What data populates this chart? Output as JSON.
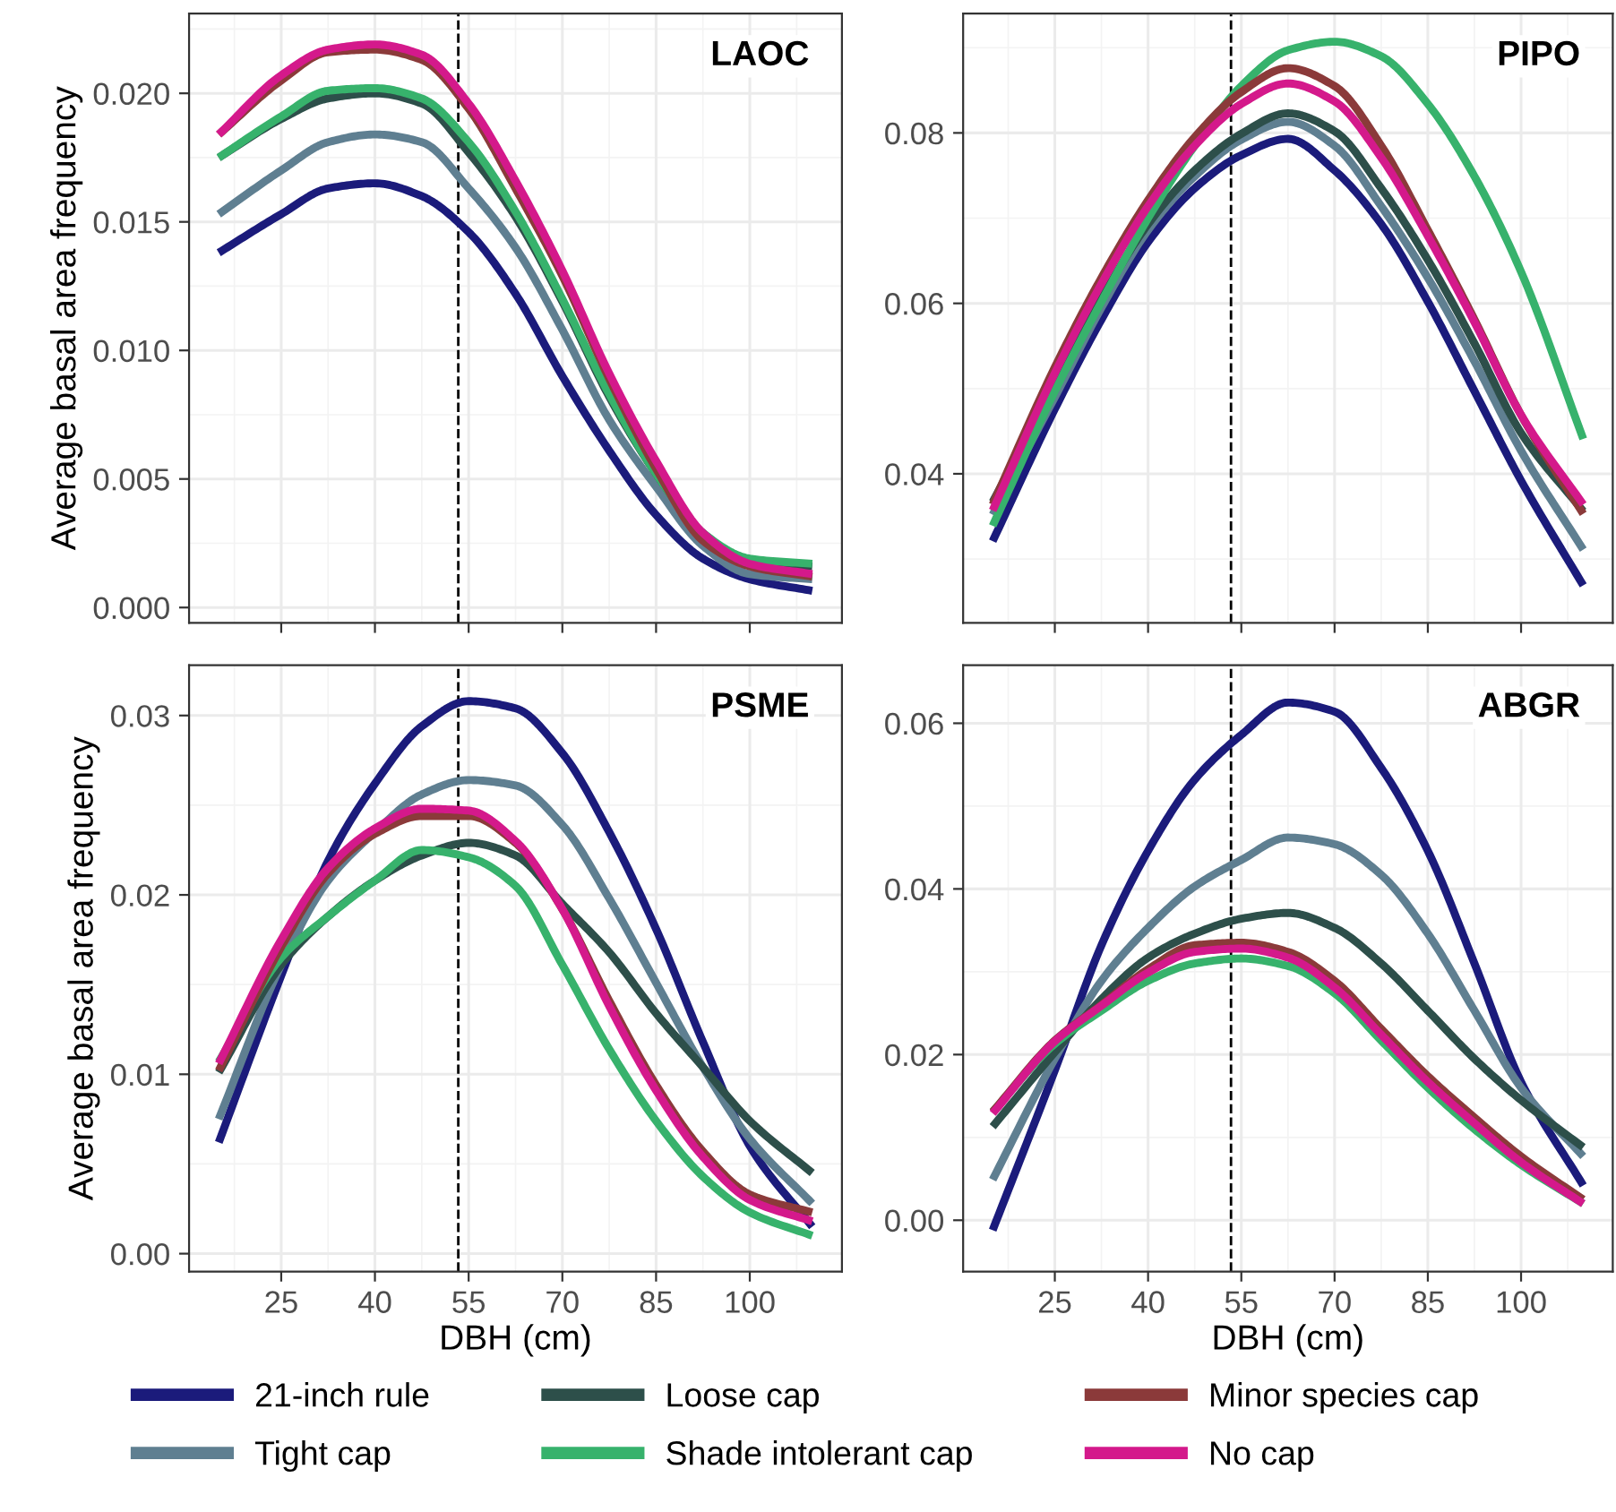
{
  "chart_data": [
    {
      "type": "line",
      "title": "LAOC",
      "ylabel": "Average basal area frequency",
      "x": [
        15,
        25,
        32.5,
        40,
        47.5,
        55,
        62.5,
        70,
        77.5,
        85,
        92.5,
        100,
        110
      ],
      "xlim": [
        10.25,
        114.75
      ],
      "xticks": [
        25,
        40,
        55,
        70,
        85,
        100
      ],
      "ylim": [
        -0.0006,
        0.0231
      ],
      "yticks": [
        {
          "value": 0,
          "label": "0.000"
        },
        0.005,
        {
          "value": 0.01,
          "label": "0.010"
        },
        0.015,
        {
          "value": 0.02,
          "label": "0.020"
        }
      ],
      "tick_labels": "y",
      "grid": true,
      "legend": "bottom",
      "marker": "none",
      "line_style": "solid",
      "ref_lines": [
        {
          "axis": "x",
          "value": 53.34,
          "color": "#000000",
          "line_style": "dashed"
        }
      ],
      "series": [
        {
          "name": "21-inch rule",
          "color": "#1b1b7b",
          "values": [
            0.0138,
            0.0153,
            0.0163,
            0.0165,
            0.016,
            0.0146,
            0.0122,
            0.009,
            0.0061,
            0.0036,
            0.0019,
            0.0011,
            0.00065
          ]
        },
        {
          "name": "Tight cap",
          "color": "#5f7f91",
          "values": [
            0.0153,
            0.017,
            0.0181,
            0.0184,
            0.0181,
            0.0163,
            0.014,
            0.0108,
            0.0073,
            0.0047,
            0.0024,
            0.0013,
            0.0011
          ]
        },
        {
          "name": "Loose cap",
          "color": "#2d4f4a",
          "values": [
            0.0175,
            0.019,
            0.0198,
            0.02,
            0.0196,
            0.0177,
            0.0152,
            0.0119,
            0.0082,
            0.0052,
            0.0029,
            0.0018,
            0.0016
          ]
        },
        {
          "name": "Shade intolerant cap",
          "color": "#37b26c",
          "values": [
            0.0175,
            0.0191,
            0.0201,
            0.0202,
            0.0198,
            0.0181,
            0.0154,
            0.012,
            0.0083,
            0.0052,
            0.0029,
            0.0019,
            0.0017
          ]
        },
        {
          "name": "Minor species cap",
          "color": "#8b3a3a",
          "values": [
            0.0184,
            0.0205,
            0.0216,
            0.0217,
            0.0213,
            0.0194,
            0.0163,
            0.0129,
            0.0089,
            0.0054,
            0.0026,
            0.0016,
            0.0012
          ]
        },
        {
          "name": "No cap",
          "color": "#d4198b",
          "values": [
            0.0184,
            0.0207,
            0.0217,
            0.0219,
            0.0215,
            0.0196,
            0.0166,
            0.0131,
            0.0091,
            0.0057,
            0.0029,
            0.0017,
            0.0013
          ]
        }
      ]
    },
    {
      "type": "line",
      "title": "PIPO",
      "x": [
        15,
        25,
        32.5,
        40,
        47.5,
        55,
        62.5,
        70,
        77.5,
        85,
        92.5,
        100,
        110
      ],
      "xlim": [
        10.25,
        114.75
      ],
      "xticks": [
        25,
        40,
        55,
        70,
        85,
        100
      ],
      "ylim": [
        0.0225,
        0.094
      ],
      "yticks": [
        0.04,
        0.06,
        0.08
      ],
      "tick_labels": "y",
      "grid": true,
      "marker": "none",
      "line_style": "solid",
      "ref_lines": [
        {
          "axis": "x",
          "value": 53.34,
          "color": "#000000",
          "line_style": "dashed"
        }
      ],
      "series": [
        {
          "color": "#1b1b7b",
          "values": [
            0.0321,
            0.0476,
            0.0581,
            0.0672,
            0.0735,
            0.0774,
            0.0793,
            0.0756,
            0.0693,
            0.0602,
            0.0497,
            0.0392,
            0.0269
          ]
        },
        {
          "color": "#5f7f91",
          "values": [
            0.0352,
            0.049,
            0.0595,
            0.0686,
            0.0749,
            0.0792,
            0.0813,
            0.0785,
            0.0714,
            0.063,
            0.0532,
            0.0427,
            0.0311
          ]
        },
        {
          "color": "#2d4f4a",
          "values": [
            0.0367,
            0.0504,
            0.0606,
            0.0693,
            0.0756,
            0.0799,
            0.0823,
            0.0802,
            0.0735,
            0.0651,
            0.0553,
            0.0448,
            0.0356
          ]
        },
        {
          "color": "#37b26c",
          "values": [
            0.0339,
            0.0497,
            0.0602,
            0.07,
            0.0785,
            0.0855,
            0.0897,
            0.0907,
            0.089,
            0.0834,
            0.0749,
            0.0637,
            0.0441
          ]
        },
        {
          "color": "#8b3a3a",
          "values": [
            0.0364,
            0.0525,
            0.063,
            0.0721,
            0.0795,
            0.0848,
            0.0876,
            0.0855,
            0.0785,
            0.0686,
            0.0581,
            0.0469,
            0.0353
          ]
        },
        {
          "color": "#d4198b",
          "values": [
            0.0357,
            0.0518,
            0.0623,
            0.0714,
            0.0785,
            0.0834,
            0.0858,
            0.0837,
            0.0771,
            0.0679,
            0.0578,
            0.0469,
            0.0364
          ]
        }
      ]
    },
    {
      "type": "line",
      "title": "PSME",
      "ylabel": "Average basal area frequency",
      "xlabel": "DBH (cm)",
      "x": [
        15,
        25,
        32.5,
        40,
        47.5,
        55,
        62.5,
        70,
        77.5,
        85,
        92.5,
        100,
        110
      ],
      "xlim": [
        10.25,
        114.75
      ],
      "xticks": [
        25,
        40,
        55,
        70,
        85,
        100
      ],
      "ylim": [
        -0.001,
        0.0328
      ],
      "yticks": [
        {
          "value": 0,
          "label": "0.00"
        },
        0.01,
        0.02,
        0.03
      ],
      "grid": true,
      "marker": "none",
      "line_style": "solid",
      "ref_lines": [
        {
          "axis": "x",
          "value": 53.34,
          "color": "#000000",
          "line_style": "dashed"
        }
      ],
      "series": [
        {
          "color": "#1b1b7b",
          "values": [
            0.0062,
            0.0155,
            0.0219,
            0.0262,
            0.0294,
            0.0308,
            0.0304,
            0.0279,
            0.0235,
            0.0181,
            0.0118,
            0.006,
            0.0015
          ]
        },
        {
          "color": "#5f7f91",
          "values": [
            0.0075,
            0.0161,
            0.0208,
            0.0235,
            0.0256,
            0.0264,
            0.0261,
            0.0239,
            0.0198,
            0.0151,
            0.0104,
            0.0064,
            0.0028
          ]
        },
        {
          "color": "#2d4f4a",
          "values": [
            0.0101,
            0.0161,
            0.0188,
            0.0208,
            0.0222,
            0.0229,
            0.0222,
            0.0195,
            0.0168,
            0.0134,
            0.0104,
            0.0074,
            0.0045
          ]
        },
        {
          "color": "#37b26c",
          "values": [
            0.0107,
            0.0165,
            0.0188,
            0.0208,
            0.0225,
            0.0221,
            0.0205,
            0.0161,
            0.0114,
            0.0074,
            0.0043,
            0.0023,
            0.001
          ]
        },
        {
          "color": "#8b3a3a",
          "values": [
            0.0102,
            0.0171,
            0.0212,
            0.0234,
            0.0244,
            0.0244,
            0.0229,
            0.0192,
            0.0141,
            0.0094,
            0.0057,
            0.0033,
            0.0023
          ]
        },
        {
          "color": "#d4198b",
          "values": [
            0.0106,
            0.0175,
            0.0215,
            0.0237,
            0.0248,
            0.0247,
            0.023,
            0.0192,
            0.0138,
            0.0091,
            0.0054,
            0.003,
            0.0018
          ]
        }
      ]
    },
    {
      "type": "line",
      "title": "ABGR",
      "xlabel": "DBH (cm)",
      "x": [
        15,
        25,
        32.5,
        40,
        47.5,
        55,
        62.5,
        70,
        77.5,
        85,
        92.5,
        100,
        110
      ],
      "xlim": [
        10.25,
        114.75
      ],
      "xticks": [
        25,
        40,
        55,
        70,
        85,
        100
      ],
      "ylim": [
        -0.0062,
        0.067
      ],
      "yticks": [
        {
          "value": 0,
          "label": "0.00"
        },
        0.02,
        0.04,
        0.06
      ],
      "grid": true,
      "marker": "none",
      "line_style": "solid",
      "ref_lines": [
        {
          "axis": "x",
          "value": 53.34,
          "color": "#000000",
          "line_style": "dashed"
        }
      ],
      "series": [
        {
          "color": "#1b1b7b",
          "values": [
            -0.0012,
            0.0181,
            0.0332,
            0.0446,
            0.0532,
            0.0586,
            0.0625,
            0.0614,
            0.0546,
            0.0446,
            0.031,
            0.0167,
            0.0042
          ]
        },
        {
          "color": "#5f7f91",
          "values": [
            0.0049,
            0.0195,
            0.0289,
            0.0353,
            0.0403,
            0.0435,
            0.0462,
            0.0454,
            0.0417,
            0.0346,
            0.0253,
            0.016,
            0.0077
          ]
        },
        {
          "color": "#2d4f4a",
          "values": [
            0.0113,
            0.0203,
            0.0267,
            0.0317,
            0.0346,
            0.0364,
            0.0371,
            0.0353,
            0.031,
            0.0253,
            0.0195,
            0.0145,
            0.0088
          ]
        },
        {
          "color": "#37b26c",
          "values": [
            0.0131,
            0.0213,
            0.0253,
            0.0289,
            0.031,
            0.0316,
            0.0307,
            0.0274,
            0.0217,
            0.016,
            0.011,
            0.0067,
            0.002
          ]
        },
        {
          "color": "#8b3a3a",
          "values": [
            0.0131,
            0.0217,
            0.026,
            0.0303,
            0.0332,
            0.0335,
            0.0324,
            0.0289,
            0.0231,
            0.0174,
            0.0124,
            0.0077,
            0.0025
          ]
        },
        {
          "color": "#d4198b",
          "values": [
            0.0129,
            0.0216,
            0.0259,
            0.0299,
            0.0324,
            0.0328,
            0.0317,
            0.0281,
            0.0224,
            0.0167,
            0.0117,
            0.007,
            0.002
          ]
        }
      ]
    }
  ]
}
